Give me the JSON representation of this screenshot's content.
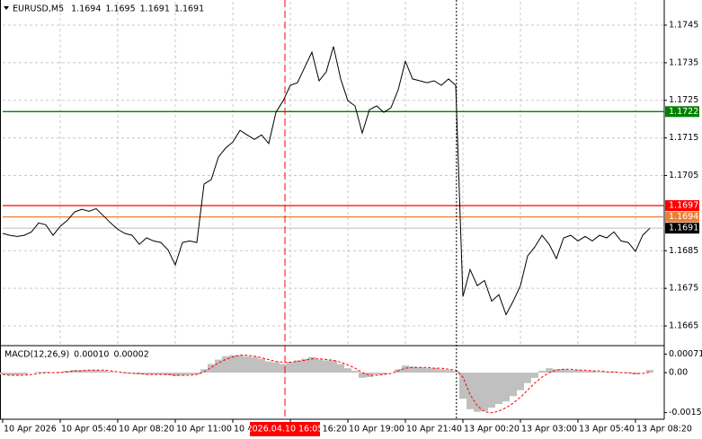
{
  "chart_data": {
    "type": "line",
    "symbol": "EURUSD,M5",
    "ohlc": [
      1.1694,
      1.1695,
      1.1691,
      1.1691
    ],
    "color": "#000000",
    "xlim": [
      0,
      92
    ],
    "xticks": [
      {
        "value": 0,
        "label": "10 Apr 2026"
      },
      {
        "value": 8,
        "label": "10 Apr 05:40"
      },
      {
        "value": 16,
        "label": "10 Apr 08:20"
      },
      {
        "value": 24,
        "label": "10 Apr 11:00"
      },
      {
        "value": 32,
        "label": "10 Apr 13:40"
      },
      {
        "value": 40,
        "label": "10 Apr 16:20"
      },
      {
        "value": 48,
        "label": "10 Apr 19:00"
      },
      {
        "value": 56,
        "label": "10 Apr 21:40"
      },
      {
        "value": 64,
        "label": "13 Apr 00:20"
      },
      {
        "value": 72,
        "label": "13 Apr 03:00"
      },
      {
        "value": 80,
        "label": "13 Apr 05:40"
      },
      {
        "value": 88,
        "label": "13 Apr 08:20"
      }
    ],
    "ylim": [
      1.166,
      1.17512
    ],
    "yticks": [
      1.1745,
      1.1735,
      1.1725,
      1.1715,
      1.1705,
      1.1685,
      1.1675,
      1.1665
    ],
    "grid": true,
    "values": [
      1.16896,
      1.16891,
      1.16888,
      1.16891,
      1.169,
      1.16924,
      1.16919,
      1.16891,
      1.16915,
      1.16931,
      1.16953,
      1.1696,
      1.16955,
      1.16962,
      1.16943,
      1.16924,
      1.16907,
      1.16896,
      1.16891,
      1.16867,
      1.16884,
      1.16876,
      1.16872,
      1.16852,
      1.16812,
      1.16872,
      1.16876,
      1.16872,
      1.17027,
      1.17039,
      1.17099,
      1.17123,
      1.17139,
      1.1717,
      1.17158,
      1.17146,
      1.17158,
      1.17135,
      1.17218,
      1.17249,
      1.1729,
      1.17297,
      1.17338,
      1.17378,
      1.17302,
      1.17326,
      1.17393,
      1.17307,
      1.17249,
      1.17235,
      1.17163,
      1.17225,
      1.17235,
      1.17218,
      1.1723,
      1.17278,
      1.17354,
      1.17307,
      1.17302,
      1.17297,
      1.17302,
      1.1729,
      1.17307,
      1.1729,
      1.16728,
      1.168,
      1.16757,
      1.16771,
      1.16716,
      1.16733,
      1.1668,
      1.16716,
      1.16757,
      1.16836,
      1.1686,
      1.16891,
      1.16867,
      1.16829,
      1.16884,
      1.16891,
      1.16876,
      1.16888,
      1.16876,
      1.16891,
      1.16884,
      1.169,
      1.16876,
      1.16872,
      1.16848,
      1.16891,
      1.1691
    ],
    "levels": [
      {
        "value": 1.1722,
        "color": "#008000",
        "label_color": "#008000"
      },
      {
        "value": 1.1697,
        "color": "#ff0000",
        "label_color": "#ff0000"
      },
      {
        "value": 1.1694,
        "color": "#e8803a",
        "label_color": "#e8803a"
      },
      {
        "value": 1.1691,
        "color": "#c8c8c8",
        "label_color": "#000000"
      }
    ],
    "crosshair": {
      "x": 39.25,
      "label": "2026.04.10 16:05",
      "color": "#ff0000"
    },
    "separators": [
      63.1
    ],
    "indicator": {
      "title": "MACD(12,26,9)",
      "readout": {
        "values": [
          0.0001,
          2e-05
        ],
        "value_labels": [
          "0.00010",
          "0.00002"
        ]
      },
      "ylim": [
        -0.00175,
        0.001
      ],
      "yticks": [
        0.00071,
        {
          "value": 0,
          "label": "0.00"
        },
        -0.00153
      ],
      "series": [
        {
          "type": "bar",
          "color": "#c0c0c0",
          "values": [
            -7e-05,
            -0.0001,
            -0.0001,
            -7e-05,
            0,
            3e-05,
            3e-05,
            0,
            3e-05,
            7e-05,
            0.0001,
            0.0001,
            0.0001,
            0.0001,
            7e-05,
            3e-05,
            0,
            -3e-05,
            -3e-05,
            -7e-05,
            -7e-05,
            -7e-05,
            -7e-05,
            -0.0001,
            -0.00013,
            -0.0001,
            -7e-05,
            -7e-05,
            0.00013,
            0.00033,
            0.0005,
            0.00063,
            0.00067,
            0.00067,
            0.00063,
            0.0006,
            0.00053,
            0.00043,
            0.0004,
            0.00033,
            0.0004,
            0.00047,
            0.00053,
            0.0006,
            0.0005,
            0.00047,
            0.00047,
            0.00033,
            0.00017,
            7e-05,
            -0.0002,
            -0.00017,
            -7e-05,
            -7e-05,
            0,
            0.00013,
            0.00027,
            0.00023,
            0.0002,
            0.00017,
            0.00017,
            0.00013,
            0.0001,
            7e-05,
            -0.001,
            -0.0014,
            -0.0015,
            -0.00147,
            -0.00134,
            -0.0012,
            -0.0011,
            -0.0009,
            -0.00067,
            -0.0004,
            -0.0002,
            7e-05,
            0.00017,
            0.00013,
            0.00013,
            0.0001,
            0.0001,
            7e-05,
            7e-05,
            3e-05,
            3e-05,
            3e-05,
            0,
            -3e-05,
            -7e-05,
            0,
            0.0001
          ]
        },
        {
          "type": "line",
          "color": "#ff0000",
          "values": [
            -7e-05,
            -0.0001,
            -0.0001,
            -0.0001,
            -7e-05,
            -3e-05,
            0,
            0,
            0,
            3e-05,
            7e-05,
            7e-05,
            0.0001,
            0.0001,
            0.0001,
            7e-05,
            3e-05,
            0,
            -3e-05,
            -3e-05,
            -7e-05,
            -7e-05,
            -7e-05,
            -7e-05,
            -0.0001,
            -0.0001,
            -0.0001,
            -7e-05,
            3e-05,
            0.0002,
            0.00037,
            0.0005,
            0.0006,
            0.00067,
            0.00067,
            0.00063,
            0.00057,
            0.0005,
            0.00043,
            0.0004,
            0.0004,
            0.00043,
            0.00047,
            0.00053,
            0.00053,
            0.0005,
            0.00047,
            0.0004,
            0.0003,
            0.00017,
            0,
            -0.0001,
            -0.0001,
            -7e-05,
            -3e-05,
            7e-05,
            0.00017,
            0.0002,
            0.0002,
            0.0002,
            0.00017,
            0.00017,
            0.00013,
            0.0001,
            -0.00017,
            -0.00084,
            -0.00127,
            -0.0015,
            -0.00154,
            -0.00147,
            -0.00134,
            -0.00117,
            -0.00094,
            -0.00067,
            -0.0004,
            -0.00017,
            0,
            0.0001,
            0.00013,
            0.00013,
            0.0001,
            0.0001,
            7e-05,
            7e-05,
            3e-05,
            3e-05,
            0,
            0,
            -3e-05,
            -3e-05,
            2e-05
          ]
        }
      ]
    }
  }
}
